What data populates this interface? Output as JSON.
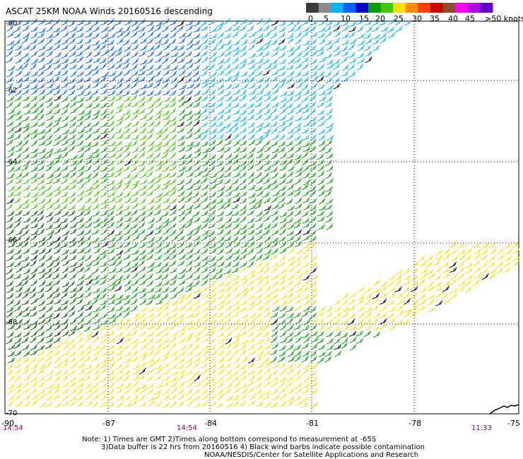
{
  "title": "ASCAT 25KM NOAA Winds 20160516 descending",
  "colorbar": {
    "labels": [
      "0",
      "5",
      "10",
      "15",
      "20",
      "25",
      "30",
      "35",
      "40",
      "45",
      ">50 knots"
    ],
    "colors": [
      "#3a3a3a",
      "#8c8c8c",
      "#00b4ff",
      "#0064ff",
      "#0000c8",
      "#00a000",
      "#40c800",
      "#ffdc00",
      "#ff8c00",
      "#ff3c00",
      "#c80000",
      "#8c4a2a",
      "#ff00ff",
      "#b400e6",
      "#6400c8"
    ]
  },
  "map": {
    "lat_labels": [
      "-60",
      "-62",
      "-64",
      "-66",
      "-68",
      "-70"
    ],
    "lon_labels": [
      "-90",
      "-87",
      "-84",
      "-81",
      "-78",
      "-75"
    ],
    "time_labels": [
      "14:54",
      "14:54",
      "11:33"
    ]
  },
  "notes": {
    "line1": "Note: 1) Times are GMT 2)Times along bottom correspond to measurement at -65S",
    "line2": "3)Data buffer is 22 hrs from 20160516 4) Black wind barbs indicate possible contamination",
    "line3": "NOAA/NESDIS/Center for Satellite Applications and Research"
  }
}
